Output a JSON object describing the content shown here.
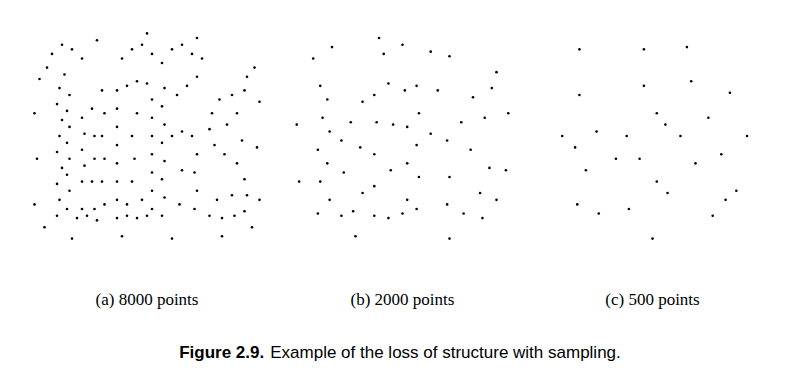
{
  "figure_label": "Figure 2.9.",
  "figure_caption": "Example of the loss of structure with sampling.",
  "chart_data": [
    {
      "type": "scatter",
      "caption": "(a) 8000 points",
      "xlim": [
        0,
        100
      ],
      "ylim": [
        0,
        100
      ],
      "tick_labels": false,
      "color": "#000000",
      "marker": "dot",
      "x": [
        14,
        15,
        14,
        16,
        14,
        15,
        16,
        14,
        15,
        17,
        18,
        19,
        18,
        19,
        18,
        19,
        18,
        19,
        22,
        26,
        30,
        24,
        29,
        24,
        25,
        24,
        25,
        24,
        28,
        28,
        29,
        29,
        33,
        32,
        33,
        32,
        33,
        32,
        38,
        42,
        46,
        50,
        38,
        38,
        38,
        38,
        38,
        38,
        38,
        42,
        46,
        50,
        52,
        52,
        52,
        52,
        52,
        52,
        52,
        44,
        45,
        44,
        46,
        42,
        48,
        10,
        12,
        16,
        20,
        24,
        40,
        44,
        48,
        52,
        56,
        60,
        64,
        68,
        72,
        56,
        57,
        56,
        57,
        56,
        57,
        56,
        57,
        60,
        64,
        68,
        70,
        69,
        70,
        69,
        62,
        66,
        70,
        63,
        64,
        75,
        80,
        85,
        89,
        90,
        89,
        86,
        81,
        77,
        75,
        76,
        79,
        84,
        89,
        90,
        78,
        84,
        82,
        88,
        86,
        5,
        6,
        5,
        7,
        95,
        94,
        95,
        93,
        20,
        40,
        60,
        80,
        30,
        50,
        70,
        9,
        92
      ],
      "values": [
        15,
        22,
        29,
        36,
        43,
        50,
        57,
        64,
        71,
        77,
        18,
        26,
        33,
        40,
        47,
        54,
        61,
        68,
        14,
        15,
        13,
        18,
        18,
        30,
        37,
        44,
        51,
        58,
        62,
        30,
        40,
        50,
        20,
        30,
        40,
        50,
        60,
        70,
        14,
        15,
        14,
        15,
        22,
        30,
        38,
        46,
        54,
        62,
        70,
        72,
        74,
        73,
        66,
        58,
        50,
        42,
        34,
        26,
        18,
        30,
        40,
        50,
        60,
        20,
        22,
        80,
        86,
        90,
        88,
        84,
        84,
        88,
        90,
        86,
        82,
        88,
        90,
        86,
        84,
        15,
        23,
        31,
        39,
        47,
        55,
        63,
        71,
        50,
        52,
        50,
        42,
        34,
        26,
        18,
        68,
        72,
        76,
        20,
        35,
        15,
        14,
        15,
        17,
        24,
        31,
        38,
        42,
        46,
        53,
        60,
        66,
        68,
        70,
        76,
        22,
        24,
        55,
        48,
        60,
        20,
        40,
        60,
        75,
        22,
        45,
        65,
        80,
        5,
        6,
        5,
        6,
        92,
        95,
        93,
        10,
        10
      ]
    },
    {
      "type": "scatter",
      "caption": "(b) 2000 points",
      "xlim": [
        0,
        100
      ],
      "ylim": [
        0,
        100
      ],
      "tick_labels": false,
      "color": "#000000",
      "marker": "dot",
      "x": [
        14,
        15,
        14,
        16,
        15,
        19,
        18,
        19,
        18,
        24,
        29,
        25,
        24,
        28,
        33,
        32,
        33,
        38,
        44,
        50,
        38,
        38,
        39,
        38,
        44,
        51,
        52,
        52,
        52,
        45,
        46,
        12,
        20,
        42,
        50,
        62,
        70,
        56,
        57,
        56,
        57,
        56,
        62,
        69,
        70,
        69,
        65,
        76,
        84,
        90,
        87,
        79,
        75,
        80,
        88,
        90,
        83,
        85,
        6,
        5,
        94,
        95,
        30,
        70,
        40
      ],
      "values": [
        16,
        30,
        44,
        58,
        72,
        22,
        38,
        52,
        66,
        15,
        17,
        34,
        48,
        56,
        25,
        45,
        65,
        15,
        14,
        16,
        28,
        42,
        56,
        68,
        73,
        70,
        54,
        38,
        22,
        35,
        55,
        84,
        89,
        86,
        90,
        87,
        85,
        18,
        32,
        46,
        60,
        72,
        51,
        48,
        32,
        20,
        70,
        16,
        14,
        22,
        36,
        44,
        56,
        67,
        71,
        78,
        25,
        58,
        30,
        55,
        35,
        60,
        6,
        5,
        93
      ]
    },
    {
      "type": "scatter",
      "caption": "(c) 500 points",
      "xlim": [
        0,
        100
      ],
      "ylim": [
        0,
        100
      ],
      "tick_labels": false,
      "color": "#000000",
      "marker": "dot",
      "x": [
        15,
        14,
        16,
        19,
        25,
        24,
        33,
        39,
        38,
        46,
        52,
        52,
        44,
        16,
        46,
        66,
        57,
        56,
        63,
        70,
        68,
        78,
        89,
        82,
        76,
        86,
        84,
        8,
        94,
        50
      ],
      "values": [
        20,
        45,
        68,
        35,
        16,
        52,
        40,
        18,
        50,
        72,
        60,
        30,
        40,
        88,
        88,
        89,
        25,
        55,
        50,
        38,
        74,
        15,
        26,
        42,
        58,
        69,
        22,
        50,
        50,
        5
      ]
    }
  ]
}
